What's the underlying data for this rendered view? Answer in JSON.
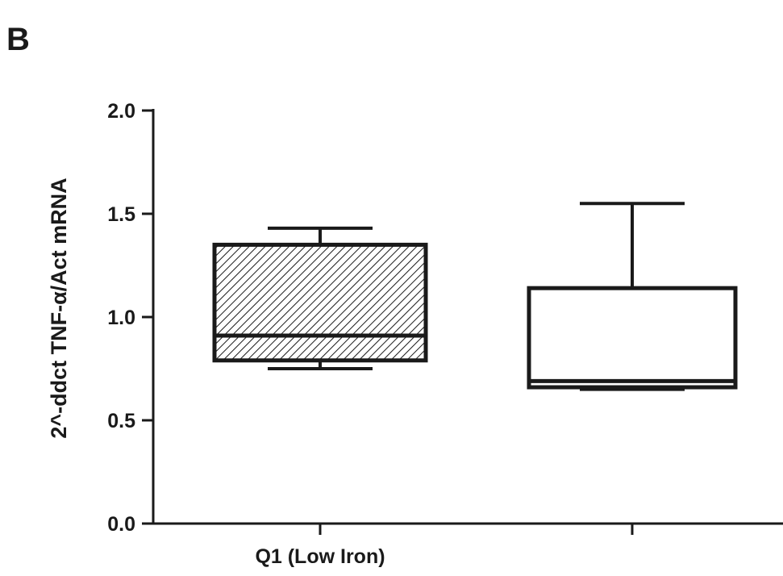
{
  "panel_label": "B",
  "chart_data": {
    "type": "box",
    "ylabel": "2^-ddct TNF-α/Act mRNA",
    "xlabel": "",
    "ylim": [
      0.0,
      2.0
    ],
    "y_ticks": [
      "0.0",
      "0.5",
      "1.0",
      "1.5",
      "2.0"
    ],
    "y_tick_values": [
      0.0,
      0.5,
      1.0,
      1.5,
      2.0
    ],
    "categories": [
      "Q1 (Low Iron)",
      ""
    ],
    "boxes": [
      {
        "category": "Q1 (Low Iron)",
        "min": 0.75,
        "q1": 0.79,
        "median": 0.91,
        "q3": 1.35,
        "max": 1.43,
        "fill": "hatched"
      },
      {
        "category": "",
        "min": 0.65,
        "q1": 0.66,
        "median": 0.69,
        "q3": 1.14,
        "max": 1.55,
        "fill": "none"
      }
    ],
    "grid": false,
    "legend": "none"
  }
}
